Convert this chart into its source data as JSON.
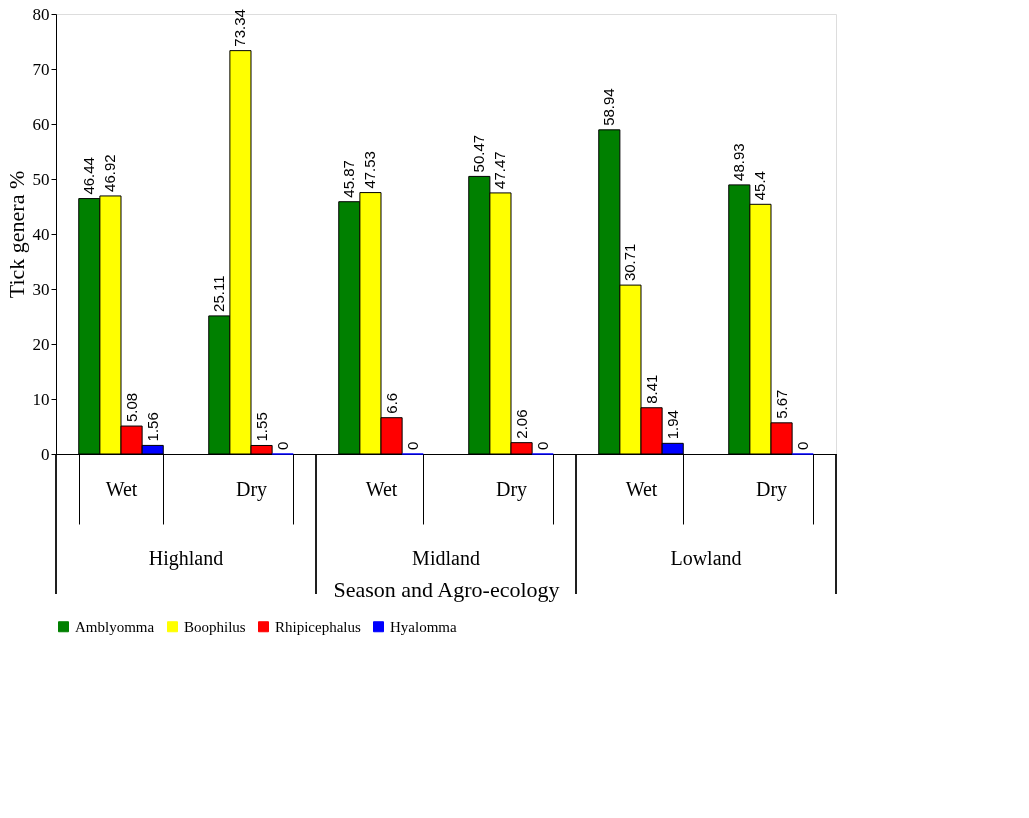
{
  "chart_data": {
    "type": "bar",
    "ylabel": "Tick genera %",
    "xlabel": "Season and Agro-ecology",
    "categories": [
      "Wet",
      "Dry",
      "Wet",
      "Dry",
      "Wet",
      "Dry"
    ],
    "annotations": [
      "Highland",
      "Midland",
      "Lowland"
    ],
    "series": [
      {
        "name": "Amblyomma",
        "color": "#008000",
        "values": [
          46.44,
          25.11,
          45.87,
          50.47,
          58.94,
          48.93
        ]
      },
      {
        "name": "Boophilus",
        "color": "#ffff00",
        "values": [
          46.92,
          73.34,
          47.53,
          47.47,
          30.71,
          45.4
        ]
      },
      {
        "name": "Rhipicephalus",
        "color": "#ff0000",
        "values": [
          5.08,
          1.55,
          6.6,
          2.06,
          8.41,
          5.67
        ]
      },
      {
        "name": "Hyalomma",
        "color": "#0000ff",
        "values": [
          1.56,
          0,
          0,
          0,
          1.94,
          0
        ]
      }
    ],
    "ylim": [
      0,
      80
    ],
    "yticks": [
      0,
      10,
      20,
      30,
      40,
      50,
      60,
      70,
      80
    ],
    "data_labels": true,
    "grid": false,
    "legend": "bottom"
  }
}
